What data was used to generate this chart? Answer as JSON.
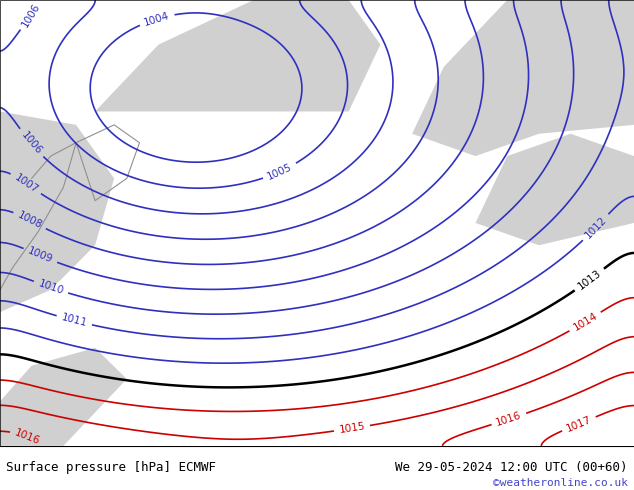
{
  "title_left": "Surface pressure [hPa] ECMWF",
  "title_right": "We 29-05-2024 12:00 UTC (00+60)",
  "credit": "©weatheronline.co.uk",
  "bg_color": "#d0e8b0",
  "ocean_color": "#c8d8e8",
  "land_gray": "#d0d0d0",
  "contour_blue_color": "#3030c0",
  "contour_black_color": "#000000",
  "contour_red_color": "#cc0000",
  "footer_bg": "#ffffff",
  "footer_text_color": "#000000",
  "credit_color": "#4444cc",
  "figsize": [
    6.34,
    4.9
  ],
  "dpi": 100,
  "pressure_levels_blue": [
    1004,
    1005,
    1006,
    1007,
    1008,
    1009,
    1010,
    1011,
    1012
  ],
  "pressure_levels_black": [
    1013
  ],
  "pressure_levels_red": [
    1014,
    1015,
    1016,
    1017
  ],
  "fontsize_footer": 9,
  "fontsize_credit": 8
}
